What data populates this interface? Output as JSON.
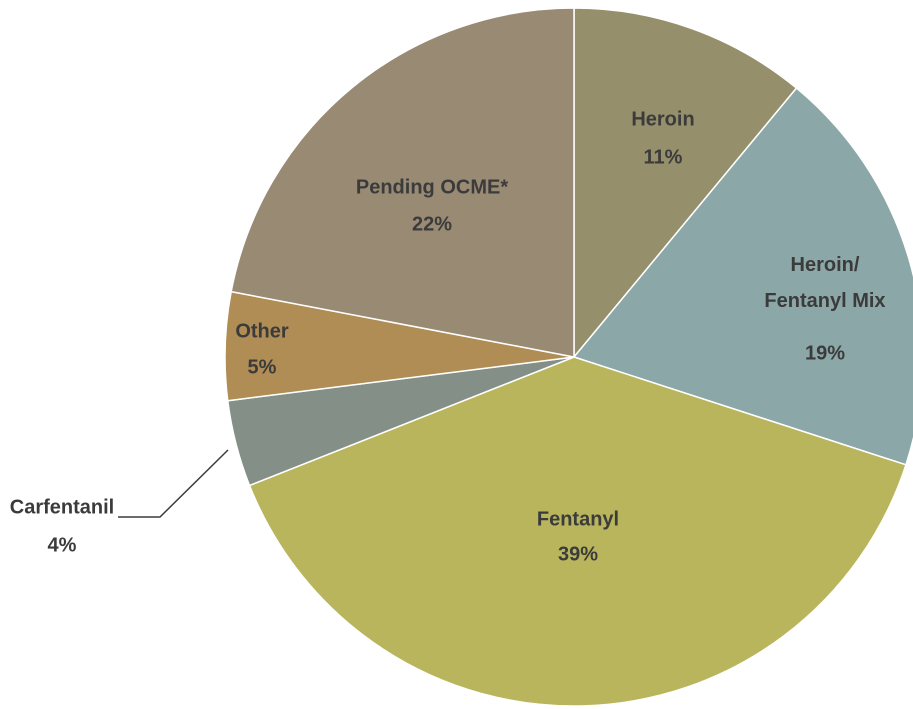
{
  "chart_data": {
    "type": "pie",
    "categories": [
      "Heroin",
      "Heroin/ Fentanyl Mix",
      "Fentanyl",
      "Carfentanil",
      "Other",
      "Pending OCME*"
    ],
    "values": [
      11,
      19,
      39,
      4,
      5,
      22
    ],
    "value_labels": [
      "11%",
      "19%",
      "39%",
      "4%",
      "5%",
      "22%"
    ],
    "colors": [
      "#968f6b",
      "#8ba7a7",
      "#b9b55c",
      "#838f87",
      "#b08d55",
      "#998a74"
    ]
  }
}
